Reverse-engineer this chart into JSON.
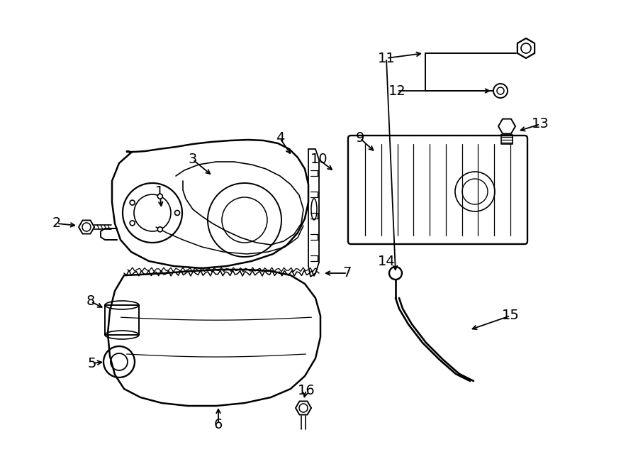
{
  "bg_color": "#ffffff",
  "line_color": "#000000",
  "figsize": [
    9.0,
    6.61
  ],
  "dpi": 100,
  "font_size_label": 14,
  "line_width": 1.4
}
